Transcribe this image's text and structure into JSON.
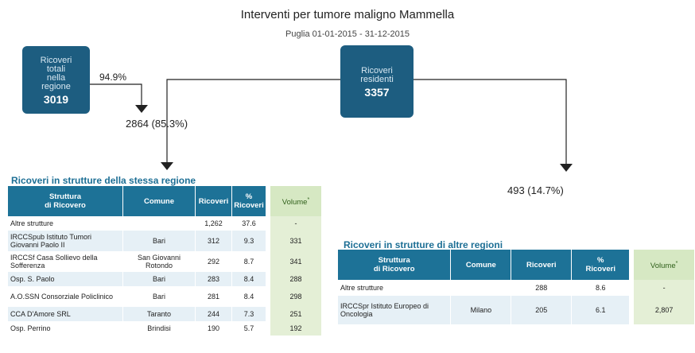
{
  "header": {
    "title": "Interventi per tumore maligno Mammella",
    "subtitle": "Puglia 01-01-2015 - 31-12-2015"
  },
  "boxes": [
    {
      "lines": [
        "Ricoveri",
        "totali",
        "nella",
        "regione"
      ],
      "value": "3019"
    },
    {
      "lines": [
        "Ricoveri",
        "residenti"
      ],
      "value": "3357"
    }
  ],
  "flows": {
    "regional_share": "94.9%",
    "same_region": "2864 (85.3%)",
    "other_regions": "493 (14.7%)"
  },
  "tables": [
    {
      "title": "Ricoveri in strutture della stessa regione",
      "headers": [
        [
          "Struttura",
          "di Ricovero"
        ],
        [
          "Comune"
        ],
        [
          "Ricoveri"
        ],
        [
          "%",
          "Ricoveri"
        ]
      ],
      "volume_header": {
        "text": "Volume",
        "note": "*"
      },
      "rows": [
        [
          "Altre strutture",
          null,
          "1,262",
          "37.6",
          "-"
        ],
        [
          "IRCCSpub Istituto Tumori Giovanni Paolo II",
          "Bari",
          "312",
          "9.3",
          "331"
        ],
        [
          "IRCCSf Casa Sollievo della Sofferenza",
          "San Giovanni Rotondo",
          "292",
          "8.7",
          "341"
        ],
        [
          "Osp. S. Paolo",
          "Bari",
          "283",
          "8.4",
          "288"
        ],
        [
          "A.O.SSN Consorziale Policlinico",
          "Bari",
          "281",
          "8.4",
          "298"
        ],
        [
          "CCA D'Amore SRL",
          "Taranto",
          "244",
          "7.3",
          "251"
        ],
        [
          "Osp. Perrino",
          "Brindisi",
          "190",
          "5.7",
          "192"
        ]
      ]
    },
    {
      "title": "Ricoveri in strutture di altre regioni",
      "headers": [
        [
          "Struttura",
          "di Ricovero"
        ],
        [
          "Comune"
        ],
        [
          "Ricoveri"
        ],
        [
          "%",
          "Ricoveri"
        ]
      ],
      "volume_header": {
        "text": "Volume",
        "note": "*"
      },
      "rows": [
        [
          "Altre strutture",
          null,
          "288",
          "8.6",
          "-"
        ],
        [
          "IRCCSpr Istituto Europeo di Oncologia",
          "Milano",
          "205",
          "6.1",
          "2,807"
        ]
      ]
    }
  ]
}
